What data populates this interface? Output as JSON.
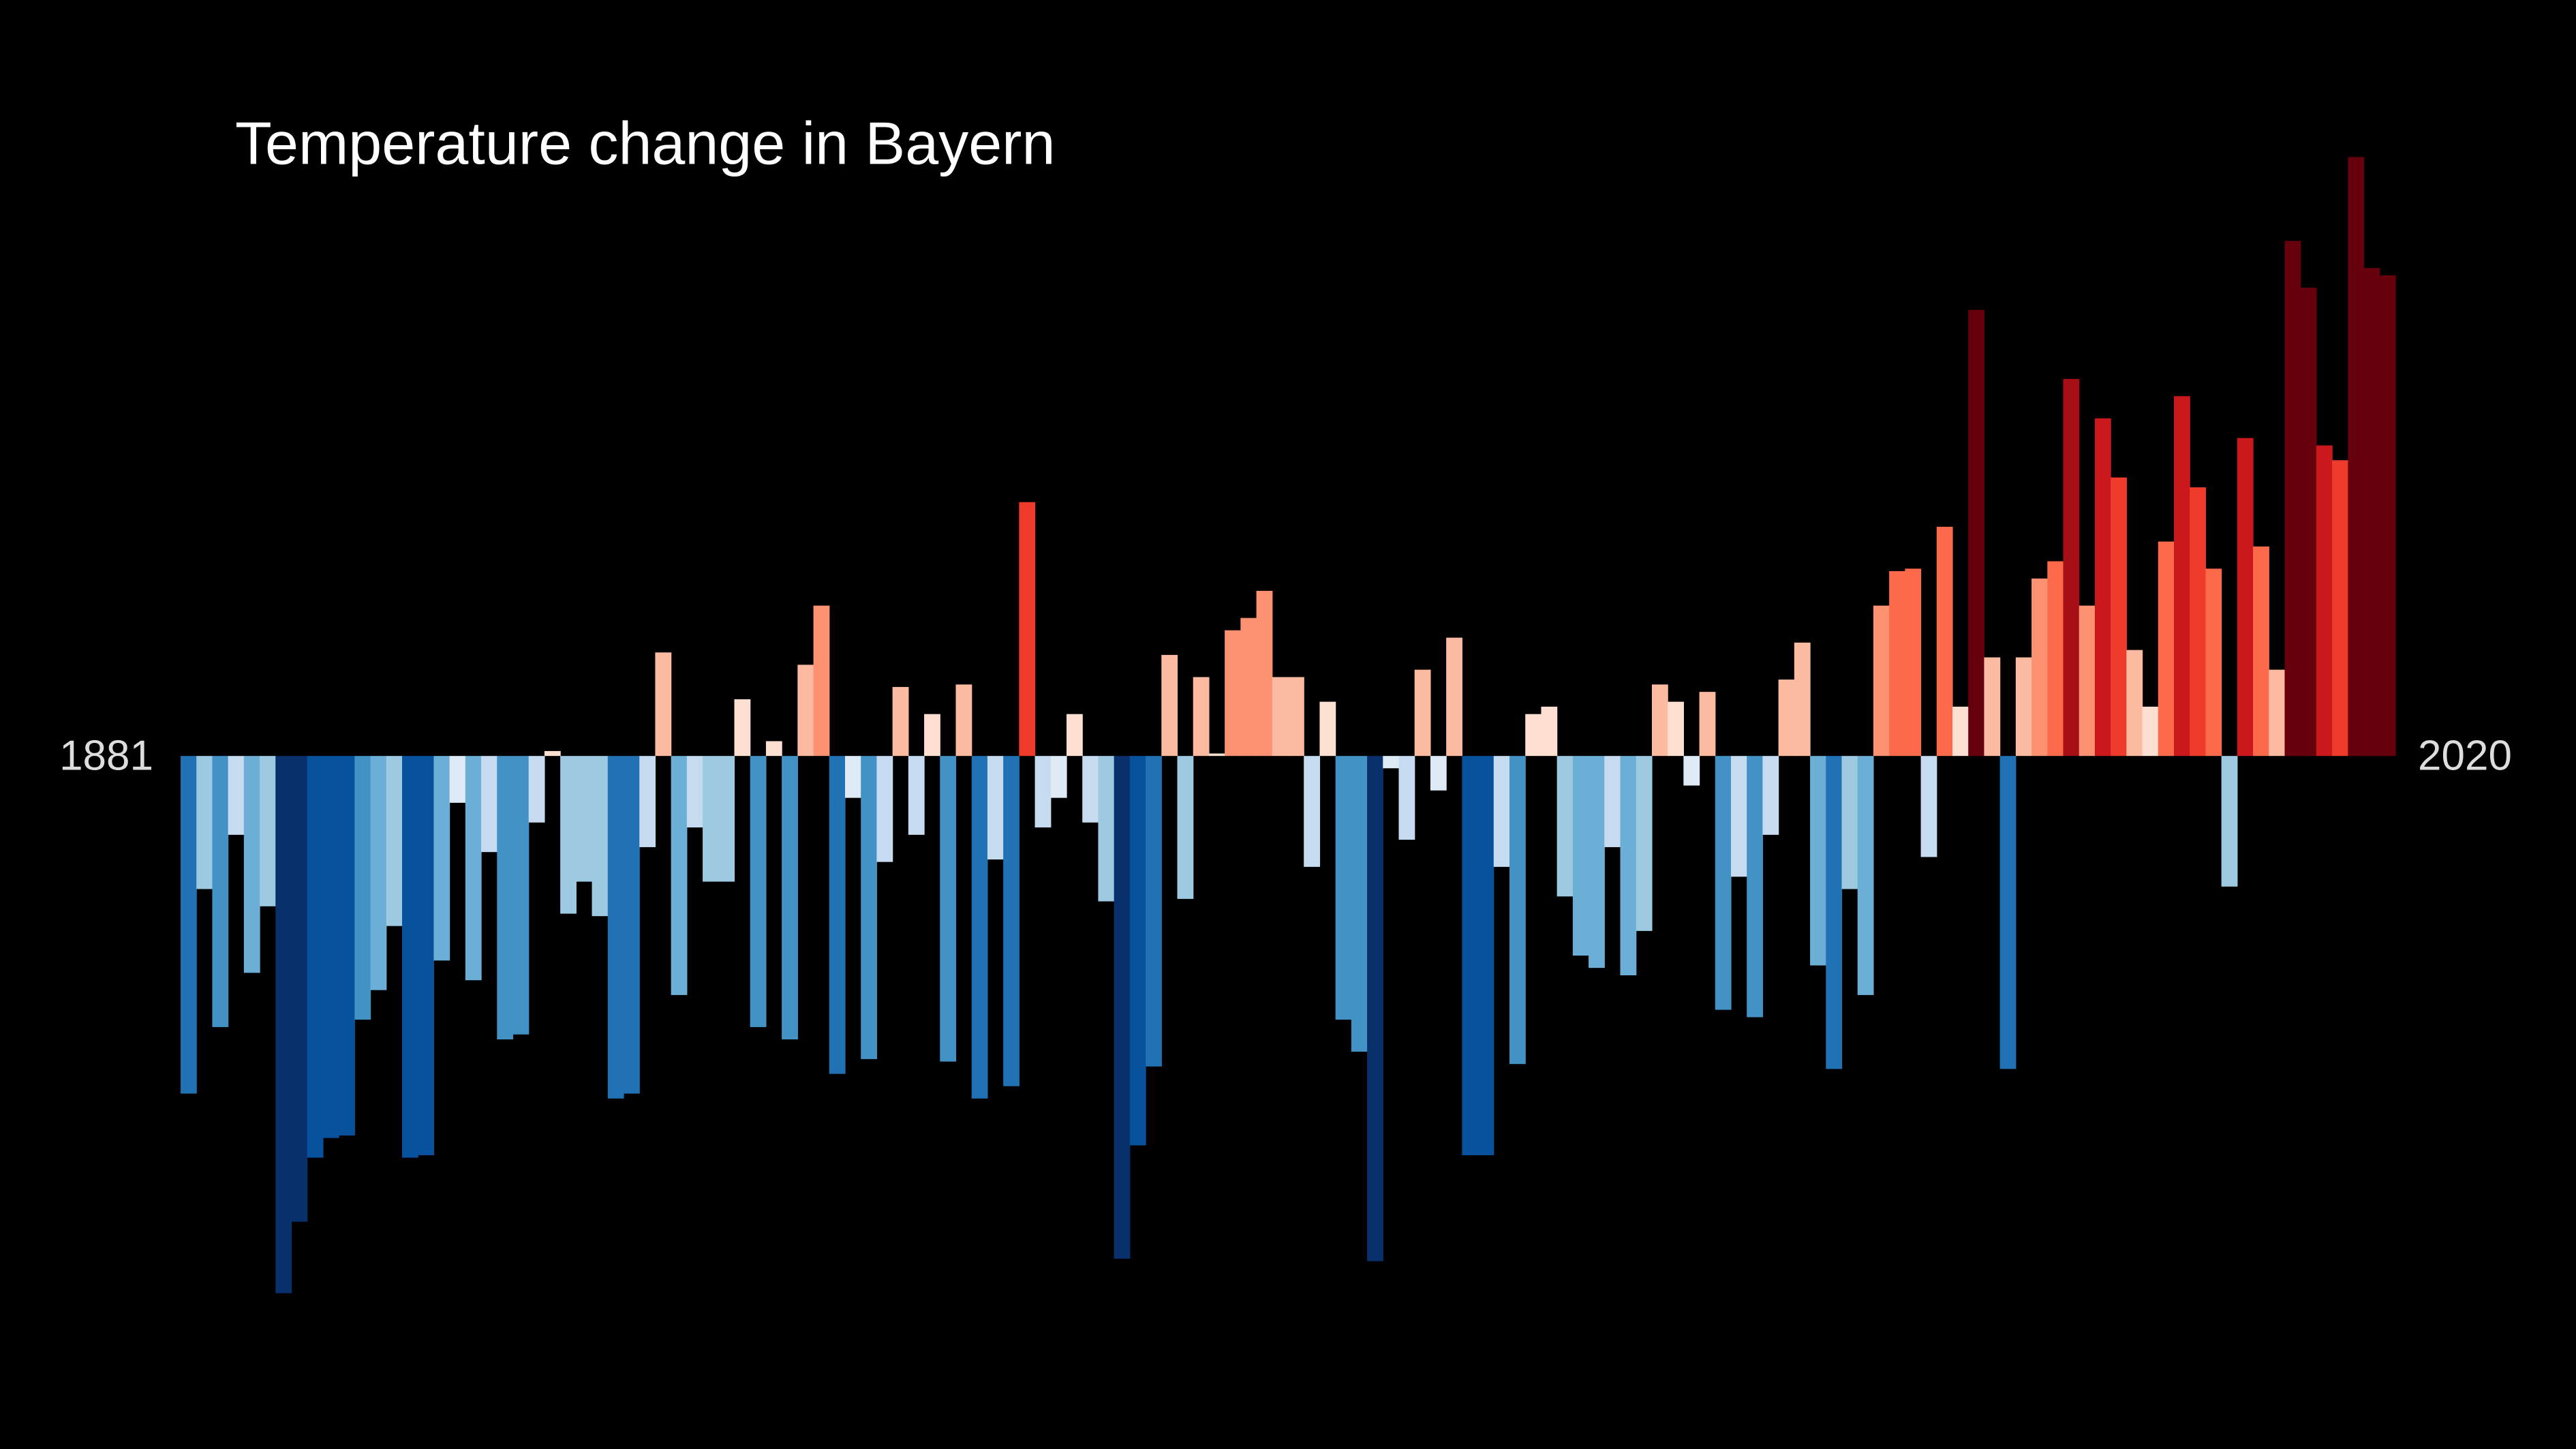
{
  "chart_data": {
    "type": "bar",
    "title": "Temperature change in Bayern",
    "categories": [
      "1881",
      null,
      null,
      null,
      null,
      null,
      null,
      null,
      null,
      null,
      null,
      null,
      null,
      null,
      null,
      null,
      null,
      null,
      null,
      null,
      null,
      null,
      null,
      null,
      null,
      null,
      null,
      null,
      null,
      null,
      null,
      null,
      null,
      null,
      null,
      null,
      null,
      null,
      null,
      null,
      null,
      null,
      null,
      null,
      null,
      null,
      null,
      null,
      null,
      null,
      null,
      null,
      null,
      null,
      null,
      null,
      null,
      null,
      null,
      null,
      null,
      null,
      null,
      null,
      null,
      null,
      null,
      null,
      null,
      null,
      null,
      null,
      null,
      null,
      null,
      null,
      null,
      null,
      null,
      null,
      null,
      null,
      null,
      null,
      null,
      null,
      null,
      null,
      null,
      null,
      null,
      null,
      null,
      null,
      null,
      null,
      null,
      null,
      null,
      null,
      null,
      null,
      null,
      null,
      null,
      null,
      null,
      null,
      null,
      null,
      null,
      null,
      null,
      null,
      null,
      null,
      null,
      null,
      null,
      null,
      null,
      null,
      null,
      null,
      null,
      null,
      null,
      null,
      null,
      null,
      null,
      null,
      null,
      null,
      null,
      null,
      null,
      null,
      null,
      "2020"
    ],
    "values": [
      -1.37,
      -0.54,
      -1.1,
      -0.32,
      -0.88,
      -0.61,
      -2.18,
      -1.89,
      -1.63,
      -1.55,
      -1.54,
      -1.07,
      -0.95,
      -0.69,
      -1.63,
      -1.62,
      -0.83,
      -0.19,
      -0.91,
      -0.39,
      -1.15,
      -1.13,
      -0.27,
      0.02,
      -0.64,
      -0.51,
      -0.65,
      -1.39,
      -1.37,
      -0.37,
      0.42,
      -0.97,
      -0.29,
      -0.51,
      -0.51,
      0.23,
      -1.1,
      0.06,
      -1.15,
      0.37,
      0.61,
      -1.29,
      -0.17,
      -1.23,
      -0.43,
      0.28,
      -0.32,
      0.17,
      -1.24,
      0.29,
      -1.39,
      -0.42,
      -1.34,
      1.03,
      -0.29,
      -0.17,
      0.17,
      -0.27,
      -0.59,
      -2.04,
      -1.58,
      -1.26,
      0.41,
      -0.58,
      0.32,
      0.01,
      0.51,
      0.56,
      0.67,
      0.32,
      0.32,
      -0.45,
      0.22,
      -1.07,
      -1.2,
      -2.05,
      -0.05,
      -0.34,
      0.35,
      -0.14,
      0.48,
      -1.62,
      -1.62,
      -0.45,
      -1.25,
      0.17,
      0.2,
      -0.57,
      -0.81,
      -0.86,
      -0.37,
      -0.89,
      -0.71,
      0.29,
      0.22,
      -0.12,
      0.26,
      -1.03,
      -0.49,
      -1.06,
      -0.32,
      0.31,
      0.46,
      -0.85,
      -1.27,
      -0.54,
      -0.97,
      0.61,
      0.75,
      0.76,
      -0.41,
      0.93,
      0.2,
      1.81,
      0.4,
      -1.27,
      0.4,
      0.72,
      0.79,
      1.53,
      0.61,
      1.37,
      1.13,
      0.43,
      0.2,
      0.87,
      1.46,
      1.09,
      0.76,
      -0.53,
      1.29,
      0.85,
      0.35,
      2.09,
      1.9,
      1.26,
      1.2,
      2.43,
      1.98,
      1.95
    ],
    "colors": [
      "#08306b",
      "#08519c",
      "#2171b5",
      "#4292c6",
      "#6baed6",
      "#9ecae1",
      "#c6dbef",
      "#deebf7",
      "#fee0d2",
      "#fcbba1",
      "#fc9272",
      "#fb6a4a",
      "#ef3b2c",
      "#cb181d",
      "#a50f15",
      "#67000d"
    ],
    "ylim": [
      -2.4,
      2.6
    ]
  }
}
